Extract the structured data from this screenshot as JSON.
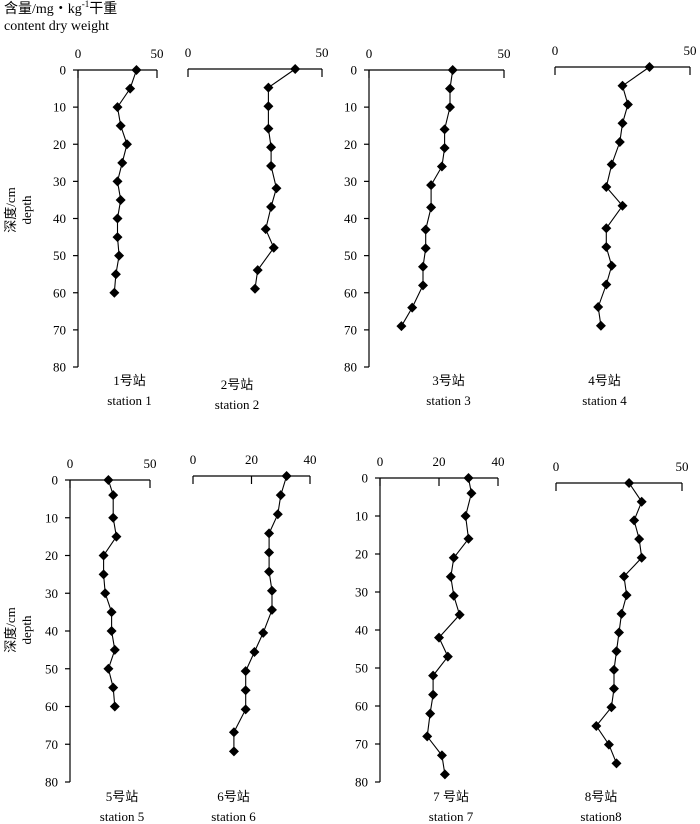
{
  "figure": {
    "y_title_cn": "深度/cm",
    "y_title_en": "depth",
    "x_title_cn": "含量/mg・kg",
    "x_title_sup": "-1",
    "x_title_cn2": "干重",
    "x_title_en": "content dry weight"
  },
  "chart_data": [
    {
      "type": "line",
      "label_cn": "1号站",
      "label_en": "station 1",
      "xlim": [
        0,
        50
      ],
      "xticks": [
        0,
        50
      ],
      "ylim": [
        0,
        80
      ],
      "yticks": [
        0,
        10,
        20,
        30,
        40,
        50,
        60,
        70,
        80
      ],
      "points": [
        [
          37,
          0
        ],
        [
          33,
          5
        ],
        [
          25,
          10
        ],
        [
          27,
          15
        ],
        [
          31,
          20
        ],
        [
          28,
          25
        ],
        [
          25,
          30
        ],
        [
          27,
          35
        ],
        [
          25,
          40
        ],
        [
          25,
          45
        ],
        [
          26,
          50
        ],
        [
          24,
          55
        ],
        [
          23,
          60
        ]
      ]
    },
    {
      "type": "line",
      "label_cn": "2号站",
      "label_en": "station 2",
      "xlim": [
        0,
        50
      ],
      "xticks": [
        0,
        50
      ],
      "ylim": [
        0,
        80
      ],
      "points": [
        [
          40,
          0
        ],
        [
          30,
          5
        ],
        [
          30,
          10
        ],
        [
          30,
          16
        ],
        [
          31,
          21
        ],
        [
          31,
          26
        ],
        [
          33,
          32
        ],
        [
          31,
          37
        ],
        [
          29,
          43
        ],
        [
          32,
          48
        ],
        [
          26,
          54
        ],
        [
          25,
          59
        ]
      ]
    },
    {
      "type": "line",
      "label_cn": "3号站",
      "label_en": "station 3",
      "xlim": [
        0,
        50
      ],
      "xticks": [
        0,
        50
      ],
      "ylim": [
        0,
        80
      ],
      "yticks": [
        0,
        10,
        20,
        30,
        40,
        50,
        60,
        70,
        80
      ],
      "points": [
        [
          31,
          0
        ],
        [
          30,
          5
        ],
        [
          30,
          10
        ],
        [
          28,
          16
        ],
        [
          28,
          21
        ],
        [
          27,
          26
        ],
        [
          23,
          31
        ],
        [
          23,
          37
        ],
        [
          21,
          43
        ],
        [
          21,
          48
        ],
        [
          20,
          53
        ],
        [
          20,
          58
        ],
        [
          16,
          64
        ],
        [
          12,
          69
        ]
      ]
    },
    {
      "type": "line",
      "label_cn": "4号站",
      "label_en": "station 4",
      "xlim": [
        0,
        50
      ],
      "xticks": [
        0,
        50
      ],
      "ylim": [
        0,
        80
      ],
      "points": [
        [
          35,
          0
        ],
        [
          25,
          5
        ],
        [
          27,
          10
        ],
        [
          25,
          15
        ],
        [
          24,
          20
        ],
        [
          21,
          26
        ],
        [
          19,
          32
        ],
        [
          25,
          37
        ],
        [
          19,
          43
        ],
        [
          19,
          48
        ],
        [
          21,
          53
        ],
        [
          19,
          58
        ],
        [
          16,
          64
        ],
        [
          17,
          69
        ]
      ]
    },
    {
      "type": "line",
      "label_cn": "5号站",
      "label_en": "station 5",
      "xlim": [
        0,
        50
      ],
      "xticks": [
        0,
        50
      ],
      "ylim": [
        0,
        80
      ],
      "yticks": [
        0,
        10,
        20,
        30,
        40,
        50,
        60,
        70,
        80
      ],
      "points": [
        [
          24,
          0
        ],
        [
          27,
          4
        ],
        [
          27,
          10
        ],
        [
          29,
          15
        ],
        [
          21,
          20
        ],
        [
          21,
          25
        ],
        [
          22,
          30
        ],
        [
          26,
          35
        ],
        [
          26,
          40
        ],
        [
          28,
          45
        ],
        [
          24,
          50
        ],
        [
          27,
          55
        ],
        [
          28,
          60
        ]
      ]
    },
    {
      "type": "line",
      "label_cn": "6号站",
      "label_en": "station 6",
      "xlim": [
        0,
        40
      ],
      "xticks": [
        0,
        20,
        40
      ],
      "ylim": [
        0,
        80
      ],
      "points": [
        [
          32,
          0
        ],
        [
          30,
          5
        ],
        [
          29,
          10
        ],
        [
          26,
          15
        ],
        [
          26,
          20
        ],
        [
          26,
          25
        ],
        [
          27,
          30
        ],
        [
          27,
          35
        ],
        [
          24,
          41
        ],
        [
          21,
          46
        ],
        [
          18,
          51
        ],
        [
          18,
          56
        ],
        [
          18,
          61
        ],
        [
          14,
          67
        ],
        [
          14,
          72
        ]
      ]
    },
    {
      "type": "line",
      "label_cn": "7 号站",
      "label_en": "station 7",
      "xlim": [
        0,
        40
      ],
      "xticks": [
        0,
        20,
        40
      ],
      "ylim": [
        0,
        80
      ],
      "yticks": [
        0,
        10,
        20,
        30,
        40,
        50,
        60,
        70,
        80
      ],
      "points": [
        [
          30,
          0
        ],
        [
          31,
          4
        ],
        [
          29,
          10
        ],
        [
          30,
          16
        ],
        [
          25,
          21
        ],
        [
          24,
          26
        ],
        [
          25,
          31
        ],
        [
          27,
          36
        ],
        [
          20,
          42
        ],
        [
          23,
          47
        ],
        [
          18,
          52
        ],
        [
          18,
          57
        ],
        [
          17,
          62
        ],
        [
          16,
          68
        ],
        [
          21,
          73
        ],
        [
          22,
          78
        ]
      ]
    },
    {
      "type": "line",
      "label_cn": "8号站",
      "label_en": "station8",
      "xlim": [
        0,
        50
      ],
      "xticks": [
        0,
        50
      ],
      "ylim": [
        0,
        80
      ],
      "points": [
        [
          29,
          0
        ],
        [
          34,
          5
        ],
        [
          31,
          10
        ],
        [
          33,
          15
        ],
        [
          34,
          20
        ],
        [
          27,
          25
        ],
        [
          28,
          30
        ],
        [
          26,
          35
        ],
        [
          25,
          40
        ],
        [
          24,
          45
        ],
        [
          23,
          50
        ],
        [
          23,
          55
        ],
        [
          22,
          60
        ],
        [
          16,
          65
        ],
        [
          21,
          70
        ],
        [
          24,
          75
        ]
      ]
    }
  ]
}
